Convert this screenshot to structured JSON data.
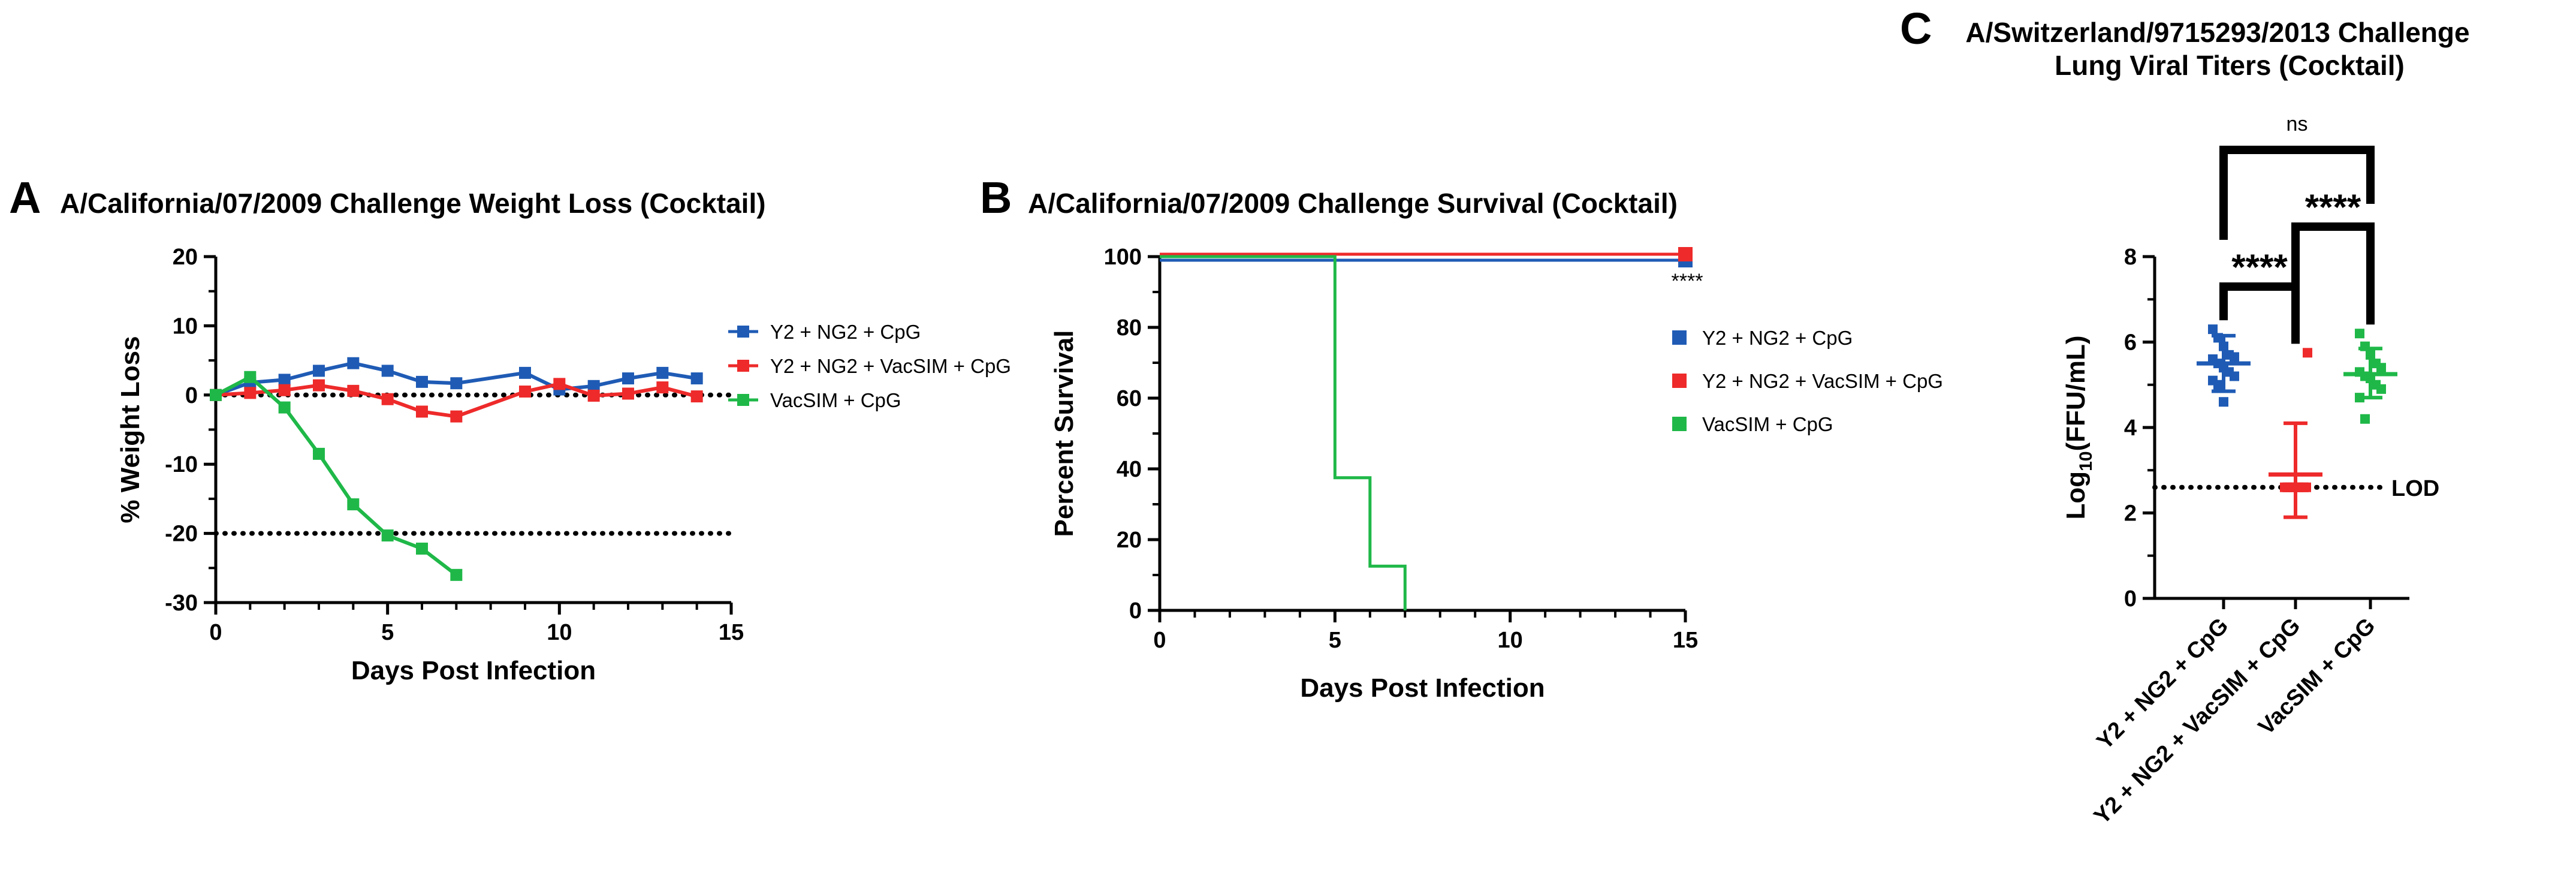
{
  "chart_data": [
    {
      "panel": "A",
      "type": "line",
      "title": "A/California/07/2009 Challenge Weight Loss (Cocktail)",
      "xlabel": "Days Post Infection",
      "ylabel": "% Weight Loss",
      "xlim": [
        0,
        15
      ],
      "ylim": [
        -30,
        20
      ],
      "xticks": [
        0,
        5,
        10,
        15
      ],
      "yticks": [
        -30,
        -20,
        -10,
        0,
        10,
        20
      ],
      "reference_lines": [
        0,
        -20
      ],
      "series": [
        {
          "name": "Y2 + NG2 + CpG",
          "color": "#1f5bb5",
          "x": [
            0,
            1,
            2,
            3,
            4,
            5,
            6,
            7,
            9,
            10,
            11,
            12,
            13,
            14
          ],
          "y": [
            0,
            1.8,
            2.2,
            3.5,
            4.6,
            3.5,
            1.9,
            1.7,
            3.2,
            0.8,
            1.3,
            2.4,
            3.2,
            2.4
          ]
        },
        {
          "name": "Y2 + NG2 + VacSIM + CpG",
          "color": "#ee2a2a",
          "x": [
            0,
            1,
            2,
            3,
            4,
            5,
            6,
            7,
            9,
            10,
            11,
            12,
            13,
            14
          ],
          "y": [
            0,
            0.3,
            0.7,
            1.4,
            0.6,
            -0.6,
            -2.4,
            -3.1,
            0.5,
            1.6,
            -0.1,
            0.2,
            1.1,
            -0.2
          ]
        },
        {
          "name": "VacSIM + CpG",
          "color": "#1fb848",
          "x": [
            0,
            1,
            2,
            3,
            4,
            5,
            6,
            7
          ],
          "y": [
            0,
            2.6,
            -1.8,
            -8.5,
            -15.8,
            -20.3,
            -22.2,
            -26.0
          ]
        }
      ]
    },
    {
      "panel": "B",
      "type": "line",
      "title": "A/California/07/2009 Challenge Survival (Cocktail)",
      "xlabel": "Days Post Infection",
      "ylabel": "Percent Survival",
      "xlim": [
        0,
        15
      ],
      "ylim": [
        0,
        100
      ],
      "xticks": [
        0,
        5,
        10,
        15
      ],
      "yticks": [
        0,
        20,
        40,
        60,
        80,
        100
      ],
      "annotation": "****",
      "series": [
        {
          "name": "Y2 + NG2 + CpG",
          "color": "#1f5bb5",
          "x": [
            0,
            15
          ],
          "y": [
            100,
            100
          ]
        },
        {
          "name": "Y2 + NG2 + VacSIM + CpG",
          "color": "#ee2a2a",
          "x": [
            0,
            15
          ],
          "y": [
            100,
            100
          ]
        },
        {
          "name": "VacSIM + CpG",
          "color": "#1fb848",
          "x": [
            0,
            5,
            5,
            6,
            6,
            7,
            7
          ],
          "y": [
            100,
            100,
            37.5,
            37.5,
            12.5,
            12.5,
            0
          ]
        }
      ]
    },
    {
      "panel": "C",
      "type": "scatter",
      "title": "A/Switzerland/9715293/2013 Challenge",
      "title2": "Lung Viral Titers (Cocktail)",
      "ylabel_main": "Log",
      "ylabel_sub": "10",
      "ylabel_rest": "(FFU/mL)",
      "ylim": [
        0,
        8
      ],
      "yticks": [
        0,
        2,
        4,
        6,
        8
      ],
      "lod": 2.6,
      "lod_label": "LOD",
      "categories": [
        "Y2 + NG2 + CpG",
        "Y2 + NG2 + VacSIM + CpG",
        "VacSIM + CpG"
      ],
      "series": [
        {
          "name": "Y2 + NG2 + CpG",
          "color": "#1f5bb5",
          "mean": 5.5,
          "sd_low": 4.85,
          "sd_high": 6.15,
          "values": [
            6.3,
            6.1,
            5.9,
            5.7,
            5.65,
            5.6,
            5.5,
            5.4,
            5.3,
            5.2,
            5.1,
            5.0,
            4.6
          ]
        },
        {
          "name": "Y2 + NG2 + VacSIM + CpG",
          "color": "#ee2a2a",
          "mean": 2.9,
          "sd_low": 1.9,
          "sd_high": 4.1,
          "values": [
            5.75,
            2.6,
            2.6,
            2.6,
            2.6,
            2.6,
            2.6,
            2.6,
            2.6,
            2.6,
            2.6,
            2.6
          ]
        },
        {
          "name": "VacSIM + CpG",
          "color": "#1fb848",
          "mean": 5.25,
          "sd_low": 4.7,
          "sd_high": 5.85,
          "values": [
            6.2,
            5.9,
            5.7,
            5.5,
            5.4,
            5.3,
            5.2,
            5.15,
            5.0,
            4.9,
            4.7,
            4.2
          ]
        }
      ],
      "significance": [
        {
          "label": "****",
          "from": 0,
          "to": 1
        },
        {
          "label": "****",
          "from": 1,
          "to": 2
        },
        {
          "label": "ns",
          "from": 0,
          "to": 2
        }
      ]
    }
  ]
}
